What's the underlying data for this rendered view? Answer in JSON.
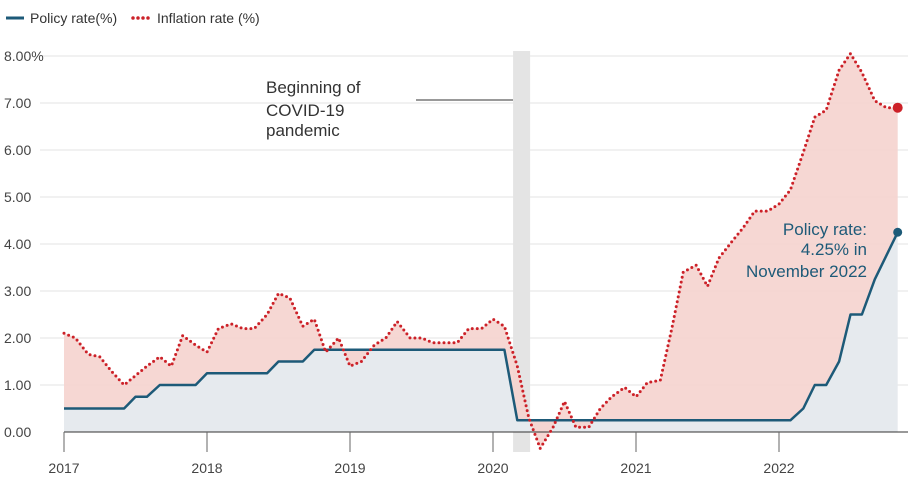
{
  "legend": {
    "policy_label": "Policy rate(%)",
    "inflation_label": "Inflation rate (%)"
  },
  "annotations": {
    "covid_lines": [
      "Beginning of",
      "COVID-19",
      "pandemic"
    ],
    "policy_lines": [
      "Policy rate:",
      "4.25% in",
      "November 2022"
    ]
  },
  "chart_data": {
    "type": "line",
    "title": "",
    "xlabel": "",
    "ylabel": "",
    "ylim": [
      0,
      8
    ],
    "grid": "horizontal",
    "legend_position": "top-left",
    "y_tick_labels": [
      "0.00",
      "1.00",
      "2.00",
      "3.00",
      "4.00",
      "5.00",
      "6.00",
      "7.00",
      "8.00%"
    ],
    "y_tick_values": [
      0,
      1,
      2,
      3,
      4,
      5,
      6,
      7,
      8
    ],
    "x_tick_labels": [
      "2017",
      "2018",
      "2019",
      "2020",
      "2021",
      "2022"
    ],
    "x_tick_values": [
      2017,
      2018,
      2019,
      2020,
      2021,
      2022
    ],
    "covid_marker_x": 2020.2,
    "series": [
      {
        "name": "Policy rate(%)",
        "color": "#1d5a78",
        "style": "solid",
        "points": [
          [
            2017.0,
            0.5
          ],
          [
            2017.42,
            0.5
          ],
          [
            2017.5,
            0.75
          ],
          [
            2017.58,
            0.75
          ],
          [
            2017.67,
            1.0
          ],
          [
            2017.92,
            1.0
          ],
          [
            2018.0,
            1.25
          ],
          [
            2018.42,
            1.25
          ],
          [
            2018.5,
            1.5
          ],
          [
            2018.67,
            1.5
          ],
          [
            2018.75,
            1.75
          ],
          [
            2020.08,
            1.75
          ],
          [
            2020.17,
            0.25
          ],
          [
            2022.08,
            0.25
          ],
          [
            2022.17,
            0.5
          ],
          [
            2022.25,
            1.0
          ],
          [
            2022.33,
            1.0
          ],
          [
            2022.42,
            1.5
          ],
          [
            2022.5,
            2.5
          ],
          [
            2022.58,
            2.5
          ],
          [
            2022.67,
            3.25
          ],
          [
            2022.83,
            4.25
          ]
        ]
      },
      {
        "name": "Inflation rate (%)",
        "color": "#cc2128",
        "style": "dotted",
        "points": [
          [
            2017.0,
            2.1
          ],
          [
            2017.08,
            2.0
          ],
          [
            2017.17,
            1.65
          ],
          [
            2017.25,
            1.6
          ],
          [
            2017.33,
            1.3
          ],
          [
            2017.42,
            1.0
          ],
          [
            2017.5,
            1.2
          ],
          [
            2017.58,
            1.4
          ],
          [
            2017.67,
            1.6
          ],
          [
            2017.75,
            1.4
          ],
          [
            2017.83,
            2.05
          ],
          [
            2017.92,
            1.85
          ],
          [
            2018.0,
            1.7
          ],
          [
            2018.08,
            2.2
          ],
          [
            2018.17,
            2.3
          ],
          [
            2018.25,
            2.2
          ],
          [
            2018.33,
            2.2
          ],
          [
            2018.42,
            2.5
          ],
          [
            2018.5,
            2.95
          ],
          [
            2018.58,
            2.85
          ],
          [
            2018.67,
            2.25
          ],
          [
            2018.75,
            2.4
          ],
          [
            2018.83,
            1.7
          ],
          [
            2018.92,
            2.0
          ],
          [
            2019.0,
            1.4
          ],
          [
            2019.08,
            1.5
          ],
          [
            2019.17,
            1.85
          ],
          [
            2019.25,
            2.0
          ],
          [
            2019.33,
            2.35
          ],
          [
            2019.42,
            2.0
          ],
          [
            2019.5,
            2.0
          ],
          [
            2019.58,
            1.9
          ],
          [
            2019.67,
            1.9
          ],
          [
            2019.75,
            1.9
          ],
          [
            2019.83,
            2.2
          ],
          [
            2019.92,
            2.2
          ],
          [
            2020.0,
            2.4
          ],
          [
            2020.08,
            2.25
          ],
          [
            2020.17,
            1.4
          ],
          [
            2020.25,
            0.3
          ],
          [
            2020.33,
            -0.35
          ],
          [
            2020.42,
            0.1
          ],
          [
            2020.5,
            0.65
          ],
          [
            2020.58,
            0.1
          ],
          [
            2020.67,
            0.1
          ],
          [
            2020.75,
            0.5
          ],
          [
            2020.83,
            0.75
          ],
          [
            2020.92,
            0.95
          ],
          [
            2021.0,
            0.75
          ],
          [
            2021.08,
            1.05
          ],
          [
            2021.17,
            1.1
          ],
          [
            2021.25,
            2.2
          ],
          [
            2021.33,
            3.4
          ],
          [
            2021.42,
            3.55
          ],
          [
            2021.5,
            3.1
          ],
          [
            2021.58,
            3.7
          ],
          [
            2021.67,
            4.05
          ],
          [
            2021.75,
            4.35
          ],
          [
            2021.83,
            4.7
          ],
          [
            2021.92,
            4.7
          ],
          [
            2022.0,
            4.85
          ],
          [
            2022.08,
            5.15
          ],
          [
            2022.17,
            5.95
          ],
          [
            2022.25,
            6.7
          ],
          [
            2022.33,
            6.85
          ],
          [
            2022.42,
            7.7
          ],
          [
            2022.5,
            8.05
          ],
          [
            2022.58,
            7.65
          ],
          [
            2022.67,
            7.05
          ],
          [
            2022.75,
            6.9
          ],
          [
            2022.83,
            6.9
          ]
        ]
      }
    ]
  }
}
